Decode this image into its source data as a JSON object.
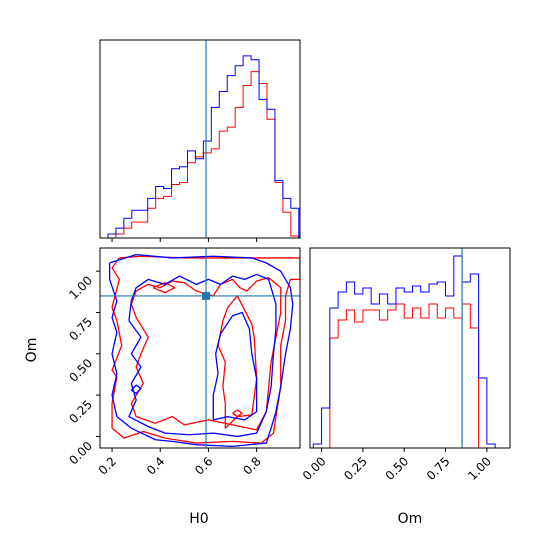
{
  "colors": {
    "series_a": "#ff0000",
    "series_b": "#0000ff",
    "truth": "#1f77b4",
    "frame": "#000000"
  },
  "chart_data": [
    {
      "type": "histogram",
      "panel": "H0 marginal",
      "xlim": [
        0.15,
        0.98
      ],
      "ylim": [
        0,
        1
      ],
      "truth": 0.59,
      "bin_edges": [
        0.15,
        0.183,
        0.216,
        0.249,
        0.282,
        0.315,
        0.348,
        0.381,
        0.414,
        0.447,
        0.48,
        0.513,
        0.546,
        0.579,
        0.612,
        0.645,
        0.678,
        0.711,
        0.744,
        0.777,
        0.81,
        0.843,
        0.876,
        0.909,
        0.942,
        0.975
      ],
      "series": [
        {
          "color_key": "series_a",
          "values": [
            0.0,
            0.0,
            0.02,
            0.05,
            0.08,
            0.08,
            0.15,
            0.2,
            0.21,
            0.27,
            0.28,
            0.38,
            0.41,
            0.43,
            0.45,
            0.54,
            0.56,
            0.66,
            0.77,
            0.84,
            0.78,
            0.6,
            0.28,
            0.13,
            0.01
          ]
        },
        {
          "color_key": "series_b",
          "values": [
            0.0,
            0.02,
            0.05,
            0.1,
            0.14,
            0.14,
            0.2,
            0.26,
            0.25,
            0.35,
            0.36,
            0.44,
            0.4,
            0.49,
            0.66,
            0.74,
            0.82,
            0.87,
            0.92,
            0.9,
            0.7,
            0.65,
            0.29,
            0.2,
            0.15
          ]
        }
      ]
    },
    {
      "type": "contour",
      "panel": "H0 vs Om",
      "xlabel": "H0",
      "ylabel": "Om",
      "xlim": [
        0.15,
        0.98
      ],
      "ylim": [
        -0.07,
        1.14
      ],
      "xticks": [
        "0.2",
        "0.4",
        "0.6",
        "0.8"
      ],
      "yticks": [
        "0.00",
        "0.25",
        "0.50",
        "0.75",
        "1.00"
      ],
      "truth": {
        "x": 0.59,
        "y": 0.85
      },
      "series": [
        {
          "color_key": "series_a",
          "contours": [
            [
              [
                0.23,
                1.08
              ],
              [
                0.32,
                1.09
              ],
              [
                0.5,
                1.08
              ],
              [
                0.65,
                1.08
              ],
              [
                0.8,
                1.08
              ],
              [
                0.98,
                1.08
              ],
              [
                0.98,
                0.95
              ],
              [
                0.94,
                0.95
              ],
              [
                0.92,
                0.85
              ],
              [
                0.92,
                0.7
              ],
              [
                0.9,
                0.55
              ],
              [
                0.9,
                0.3
              ],
              [
                0.88,
                0.12
              ],
              [
                0.87,
                0.02
              ],
              [
                0.82,
                -0.04
              ],
              [
                0.7,
                -0.03
              ],
              [
                0.55,
                -0.04
              ],
              [
                0.42,
                -0.01
              ],
              [
                0.33,
                0.03
              ],
              [
                0.25,
                -0.01
              ],
              [
                0.2,
                0.05
              ],
              [
                0.2,
                0.2
              ],
              [
                0.22,
                0.36
              ],
              [
                0.2,
                0.4
              ],
              [
                0.24,
                0.55
              ],
              [
                0.22,
                0.7
              ],
              [
                0.2,
                0.78
              ],
              [
                0.23,
                0.95
              ],
              [
                0.2,
                1.02
              ],
              [
                0.23,
                1.08
              ]
            ],
            [
              [
                0.28,
                0.8
              ],
              [
                0.3,
                0.72
              ],
              [
                0.35,
                0.6
              ],
              [
                0.32,
                0.5
              ],
              [
                0.3,
                0.42
              ],
              [
                0.33,
                0.32
              ],
              [
                0.28,
                0.2
              ],
              [
                0.3,
                0.12
              ],
              [
                0.38,
                0.08
              ],
              [
                0.45,
                0.12
              ],
              [
                0.5,
                0.07
              ],
              [
                0.6,
                0.1
              ],
              [
                0.7,
                0.07
              ],
              [
                0.8,
                0.04
              ],
              [
                0.84,
                0.15
              ],
              [
                0.85,
                0.3
              ],
              [
                0.86,
                0.45
              ],
              [
                0.88,
                0.6
              ],
              [
                0.9,
                0.75
              ],
              [
                0.9,
                0.9
              ],
              [
                0.85,
                0.96
              ],
              [
                0.8,
                0.94
              ],
              [
                0.76,
                0.88
              ],
              [
                0.73,
                0.9
              ],
              [
                0.7,
                0.95
              ],
              [
                0.65,
                0.92
              ],
              [
                0.62,
                0.85
              ],
              [
                0.55,
                0.88
              ],
              [
                0.5,
                0.93
              ],
              [
                0.45,
                0.94
              ],
              [
                0.4,
                0.9
              ],
              [
                0.35,
                0.92
              ],
              [
                0.3,
                0.88
              ],
              [
                0.28,
                0.8
              ]
            ],
            [
              [
                0.37,
                0.9
              ],
              [
                0.42,
                0.93
              ],
              [
                0.46,
                0.9
              ],
              [
                0.42,
                0.87
              ],
              [
                0.37,
                0.9
              ]
            ],
            [
              [
                0.67,
                0.05
              ],
              [
                0.72,
                0.12
              ],
              [
                0.78,
                0.13
              ],
              [
                0.8,
                0.35
              ],
              [
                0.79,
                0.6
              ],
              [
                0.78,
                0.68
              ],
              [
                0.72,
                0.85
              ],
              [
                0.68,
                0.78
              ],
              [
                0.66,
                0.7
              ],
              [
                0.64,
                0.55
              ],
              [
                0.67,
                0.45
              ],
              [
                0.66,
                0.3
              ],
              [
                0.67,
                0.2
              ],
              [
                0.67,
                0.05
              ]
            ],
            [
              [
                0.7,
                0.14
              ],
              [
                0.72,
                0.12
              ],
              [
                0.74,
                0.14
              ],
              [
                0.72,
                0.16
              ],
              [
                0.7,
                0.14
              ]
            ]
          ]
        },
        {
          "color_key": "series_b",
          "contours": [
            [
              [
                0.19,
                1.05
              ],
              [
                0.3,
                1.1
              ],
              [
                0.45,
                1.08
              ],
              [
                0.62,
                1.09
              ],
              [
                0.78,
                1.08
              ],
              [
                0.84,
                1.05
              ],
              [
                0.9,
                1.0
              ],
              [
                0.94,
                0.9
              ],
              [
                0.95,
                0.8
              ],
              [
                0.94,
                0.65
              ],
              [
                0.92,
                0.5
              ],
              [
                0.9,
                0.3
              ],
              [
                0.88,
                0.15
              ],
              [
                0.86,
                0.05
              ],
              [
                0.84,
                -0.04
              ],
              [
                0.7,
                -0.06
              ],
              [
                0.55,
                -0.05
              ],
              [
                0.45,
                -0.03
              ],
              [
                0.38,
                -0.02
              ],
              [
                0.28,
                0.05
              ],
              [
                0.22,
                0.12
              ],
              [
                0.2,
                0.25
              ],
              [
                0.22,
                0.38
              ],
              [
                0.2,
                0.5
              ],
              [
                0.22,
                0.63
              ],
              [
                0.2,
                0.72
              ],
              [
                0.22,
                0.82
              ],
              [
                0.19,
                0.95
              ],
              [
                0.19,
                1.05
              ]
            ],
            [
              [
                0.27,
                0.7
              ],
              [
                0.32,
                0.6
              ],
              [
                0.28,
                0.5
              ],
              [
                0.32,
                0.42
              ],
              [
                0.28,
                0.32
              ],
              [
                0.3,
                0.22
              ],
              [
                0.27,
                0.12
              ],
              [
                0.35,
                0.06
              ],
              [
                0.42,
                0.02
              ],
              [
                0.52,
                0.01
              ],
              [
                0.62,
                0.02
              ],
              [
                0.72,
                0.0
              ],
              [
                0.8,
                0.02
              ],
              [
                0.84,
                0.15
              ],
              [
                0.86,
                0.3
              ],
              [
                0.87,
                0.5
              ],
              [
                0.88,
                0.65
              ],
              [
                0.88,
                0.8
              ],
              [
                0.85,
                0.95
              ],
              [
                0.8,
                0.98
              ],
              [
                0.75,
                0.95
              ],
              [
                0.7,
                0.97
              ],
              [
                0.65,
                0.92
              ],
              [
                0.6,
                0.95
              ],
              [
                0.55,
                0.92
              ],
              [
                0.48,
                0.97
              ],
              [
                0.42,
                0.92
              ],
              [
                0.35,
                0.95
              ],
              [
                0.3,
                0.9
              ],
              [
                0.28,
                0.82
              ],
              [
                0.27,
                0.7
              ]
            ],
            [
              [
                0.62,
                0.1
              ],
              [
                0.68,
                0.12
              ],
              [
                0.75,
                0.1
              ],
              [
                0.8,
                0.15
              ],
              [
                0.8,
                0.35
              ],
              [
                0.78,
                0.5
              ],
              [
                0.77,
                0.65
              ],
              [
                0.74,
                0.75
              ],
              [
                0.7,
                0.73
              ],
              [
                0.65,
                0.62
              ],
              [
                0.63,
                0.5
              ],
              [
                0.64,
                0.38
              ],
              [
                0.62,
                0.25
              ],
              [
                0.62,
                0.1
              ]
            ],
            [
              [
                0.28,
                0.28
              ],
              [
                0.3,
                0.26
              ],
              [
                0.32,
                0.29
              ],
              [
                0.3,
                0.31
              ],
              [
                0.28,
                0.28
              ]
            ]
          ]
        }
      ]
    },
    {
      "type": "histogram",
      "panel": "Om marginal",
      "xlabel": "Om",
      "xlim": [
        -0.07,
        1.14
      ],
      "ylim": [
        0,
        1
      ],
      "xticks": [
        "0.00",
        "0.25",
        "0.50",
        "0.75",
        "1.00"
      ],
      "truth": 0.85,
      "bin_edges": [
        -0.05,
        0.0,
        0.05,
        0.1,
        0.15,
        0.2,
        0.25,
        0.3,
        0.35,
        0.4,
        0.45,
        0.5,
        0.55,
        0.6,
        0.65,
        0.7,
        0.75,
        0.8,
        0.85,
        0.9,
        0.95,
        1.0,
        1.05,
        1.1
      ],
      "series": [
        {
          "color_key": "series_a",
          "values": [
            0.0,
            0.0,
            0.55,
            0.64,
            0.69,
            0.63,
            0.69,
            0.69,
            0.64,
            0.69,
            0.72,
            0.65,
            0.7,
            0.65,
            0.72,
            0.65,
            0.7,
            0.65,
            0.72,
            0.6,
            0.0,
            0.0,
            0.0
          ]
        },
        {
          "color_key": "series_b",
          "values": [
            0.02,
            0.2,
            0.7,
            0.78,
            0.83,
            0.77,
            0.8,
            0.72,
            0.77,
            0.72,
            0.8,
            0.78,
            0.81,
            0.78,
            0.82,
            0.83,
            0.76,
            0.96,
            0.83,
            0.87,
            0.35,
            0.02,
            0.0
          ]
        }
      ]
    }
  ]
}
